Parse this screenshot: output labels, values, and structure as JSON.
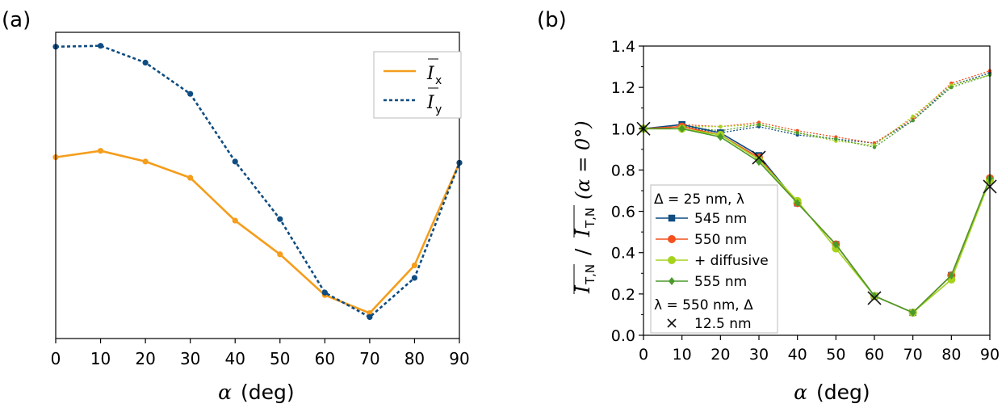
{
  "chart_data": [
    {
      "panel_label": "(a)",
      "type": "line",
      "x": [
        0,
        10,
        20,
        30,
        40,
        50,
        60,
        70,
        80,
        90
      ],
      "xlim": [
        0,
        90
      ],
      "ylim": [
        0,
        1
      ],
      "xticks": [
        "0",
        "10",
        "20",
        "30",
        "40",
        "50",
        "60",
        "70",
        "80",
        "90"
      ],
      "xlabel": {
        "symbol": "α",
        "unit": "(deg)"
      },
      "ylabel": "",
      "yticks_shown": false,
      "legend": {
        "location": "top-right"
      },
      "series": [
        {
          "name": "I",
          "subscript": "x",
          "style": "solid",
          "color": "#f59d1c",
          "values": [
            0.592,
            0.613,
            0.578,
            0.525,
            0.385,
            0.275,
            0.142,
            0.083,
            0.239,
            0.574
          ]
        },
        {
          "name": "I",
          "subscript": "y",
          "style": "dotted",
          "color": "#0f4c81",
          "values": [
            0.953,
            0.956,
            0.901,
            0.799,
            0.578,
            0.39,
            0.15,
            0.07,
            0.198,
            0.574
          ]
        }
      ]
    },
    {
      "panel_label": "(b)",
      "type": "line",
      "x": [
        0,
        10,
        20,
        30,
        40,
        50,
        60,
        70,
        80,
        90
      ],
      "xlim": [
        0,
        90
      ],
      "ylim": [
        0,
        1.4
      ],
      "xticks": [
        "0",
        "10",
        "20",
        "30",
        "40",
        "50",
        "60",
        "70",
        "80",
        "90"
      ],
      "yticks": [
        "0.0",
        "0.2",
        "0.4",
        "0.6",
        "0.8",
        "1.0",
        "1.2",
        "1.4"
      ],
      "xlabel": {
        "symbol": "α",
        "unit": "(deg)"
      },
      "ylabel": {
        "num": "I",
        "num_sub": "T,N",
        "sep": "/",
        "den": "I",
        "den_sub": "T,N",
        "arg": "(α = 0°)"
      },
      "legend": {
        "location": "lower-left",
        "header1": "Δ = 25 nm, λ",
        "header2": "λ = 550 nm, Δ",
        "entries": [
          "545 nm",
          "550 nm",
          "+ diffusive",
          "555 nm",
          "12.5 nm"
        ]
      },
      "series": [
        {
          "name": "545 nm",
          "group": "Δ = 25 nm",
          "marker": "square",
          "color": "#0f4c81",
          "values": [
            1.0,
            1.02,
            0.98,
            0.87,
            0.64,
            0.44,
            0.19,
            0.11,
            0.29,
            0.75
          ],
          "dotted_values": [
            1.0,
            1.01,
            0.98,
            1.01,
            0.97,
            0.95,
            0.93,
            1.04,
            1.21,
            1.27
          ]
        },
        {
          "name": "550 nm",
          "group": "Δ = 25 nm",
          "marker": "circle",
          "color": "#f4501e",
          "values": [
            1.0,
            1.01,
            0.97,
            0.86,
            0.64,
            0.44,
            0.19,
            0.11,
            0.29,
            0.76
          ],
          "dotted_values": [
            1.0,
            1.02,
            1.01,
            1.03,
            0.99,
            0.96,
            0.93,
            1.05,
            1.22,
            1.28
          ]
        },
        {
          "name": "+ diffusive",
          "group": "Δ = 25 nm",
          "marker": "circle",
          "color": "#a6d21e",
          "values": [
            1.0,
            1.0,
            0.97,
            0.85,
            0.65,
            0.42,
            0.19,
            0.11,
            0.27,
            0.75
          ],
          "dotted_values": [
            1.0,
            1.01,
            1.01,
            1.02,
            0.98,
            0.94,
            0.92,
            1.06,
            1.21,
            1.26
          ]
        },
        {
          "name": "555 nm",
          "group": "Δ = 25 nm",
          "marker": "diamond",
          "color": "#4c9a2a",
          "values": [
            1.0,
            1.0,
            0.96,
            0.84,
            0.64,
            0.44,
            0.19,
            0.11,
            0.29,
            0.76
          ],
          "dotted_values": [
            1.0,
            1.01,
            0.99,
            1.02,
            0.98,
            0.95,
            0.91,
            1.04,
            1.2,
            1.26
          ]
        },
        {
          "name": "12.5 nm",
          "group": "λ = 550 nm",
          "marker": "x",
          "color": "#111111",
          "points": [
            [
              0,
              1.0
            ],
            [
              30,
              0.86
            ],
            [
              60,
              0.18
            ],
            [
              90,
              0.72
            ]
          ]
        }
      ]
    }
  ]
}
